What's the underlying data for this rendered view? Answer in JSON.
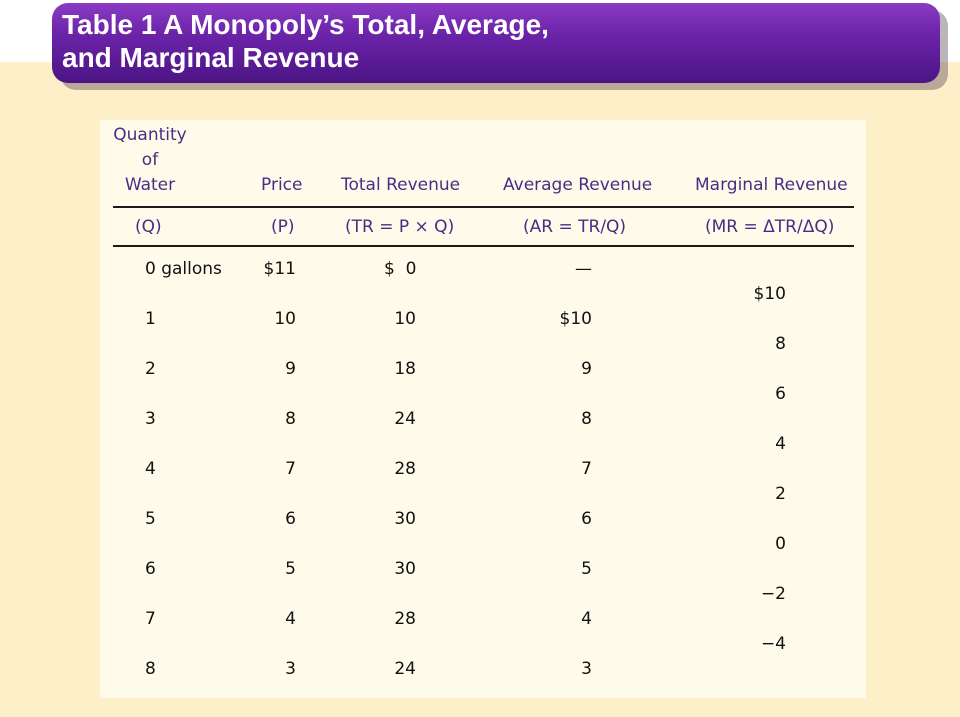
{
  "title_line1": "Table 1 A Monopoly’s Total, Average,",
  "title_line2": "and Marginal Revenue",
  "headers": {
    "quantity": [
      "Quantity",
      "of",
      "Water"
    ],
    "price": "Price",
    "total_revenue": "Total Revenue",
    "average_revenue": "Average Revenue",
    "marginal_revenue": "Marginal Revenue"
  },
  "formulas": {
    "quantity": "(Q)",
    "price": "(P)",
    "total_revenue": "(TR = P × Q)",
    "average_revenue": "(AR = TR/Q)",
    "marginal_revenue": "(MR = ΔTR/ΔQ)"
  },
  "rows": [
    {
      "q": "0 gallons",
      "p": "$11",
      "tr": "$  0",
      "ar": "—"
    },
    {
      "q": "1",
      "p": "10",
      "tr": "10",
      "ar": "$10"
    },
    {
      "q": "2",
      "p": "9",
      "tr": "18",
      "ar": "9"
    },
    {
      "q": "3",
      "p": "8",
      "tr": "24",
      "ar": "8"
    },
    {
      "q": "4",
      "p": "7",
      "tr": "28",
      "ar": "7"
    },
    {
      "q": "5",
      "p": "6",
      "tr": "30",
      "ar": "6"
    },
    {
      "q": "6",
      "p": "5",
      "tr": "30",
      "ar": "5"
    },
    {
      "q": "7",
      "p": "4",
      "tr": "28",
      "ar": "4"
    },
    {
      "q": "8",
      "p": "3",
      "tr": "24",
      "ar": "3"
    }
  ],
  "marginal": [
    "$10",
    "8",
    "6",
    "4",
    "2",
    "0",
    "−2",
    "−4"
  ]
}
